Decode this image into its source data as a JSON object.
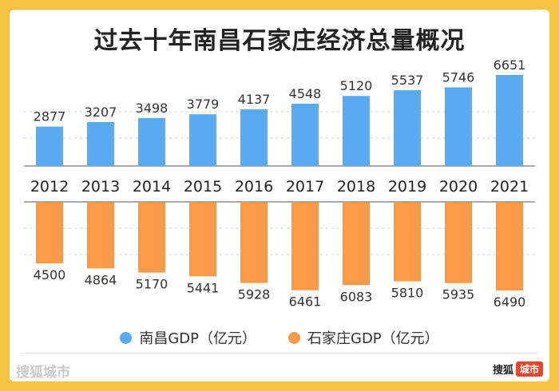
{
  "title": "过去十年南昌石家庄经济总量概况",
  "chart_data": {
    "type": "bar",
    "categories": [
      "2012",
      "2013",
      "2014",
      "2015",
      "2016",
      "2017",
      "2018",
      "2019",
      "2020",
      "2021"
    ],
    "series": [
      {
        "name": "南昌GDP（亿元）",
        "values": [
          2877,
          3207,
          3498,
          3779,
          4137,
          4548,
          5120,
          5537,
          5746,
          6651
        ],
        "color": "#5aaaf0"
      },
      {
        "name": "石家庄GDP（亿元）",
        "values": [
          4500,
          4864,
          5170,
          5441,
          5928,
          6461,
          6083,
          5810,
          5935,
          6490
        ],
        "color": "#fc9a4c"
      }
    ],
    "grid": true,
    "legend": "bottom"
  },
  "footer": {
    "left": "搜狐城市",
    "right_prefix": "搜狐",
    "right_badge": "城市"
  }
}
